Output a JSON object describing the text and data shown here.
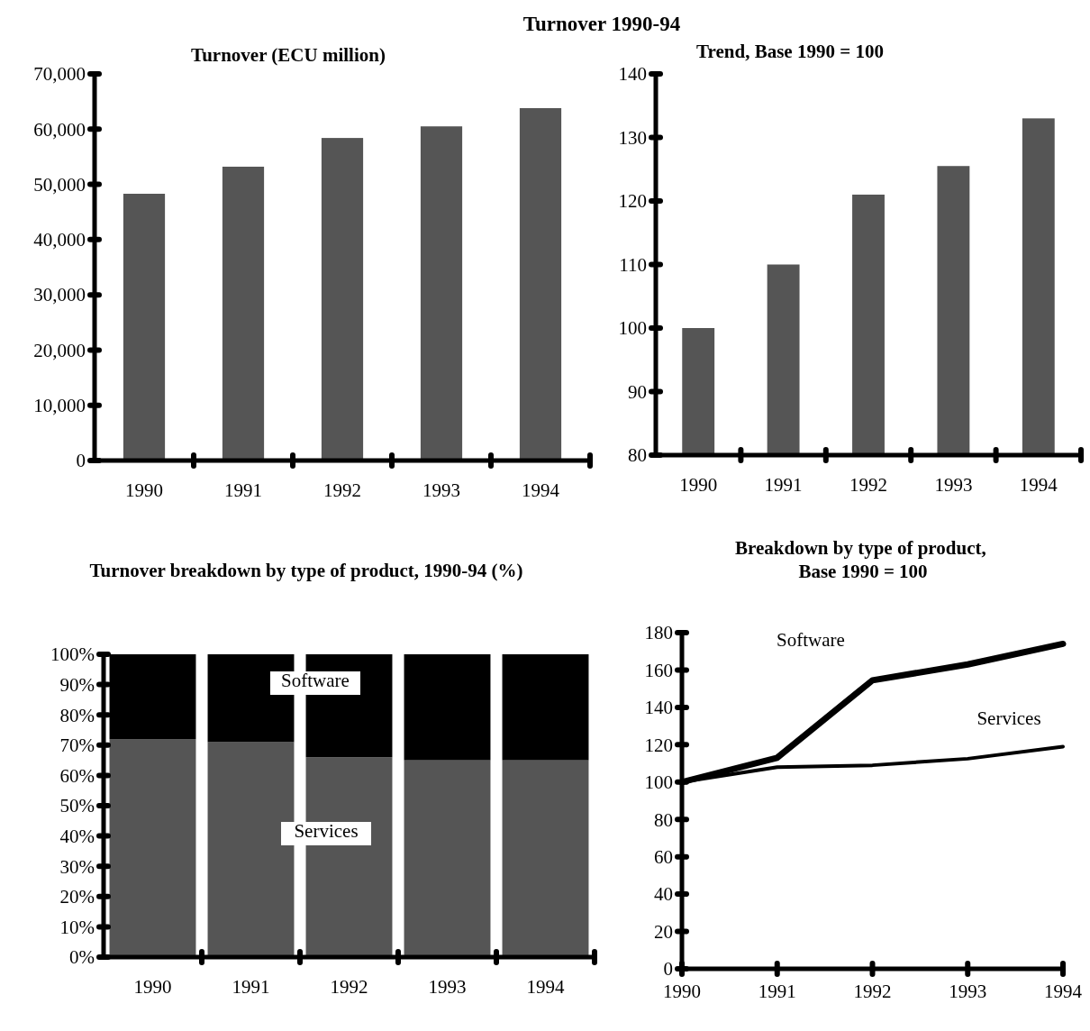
{
  "chart_data": [
    {
      "type": "other",
      "title": "Turnover 1990-94"
    },
    {
      "type": "bar",
      "title": "Turnover (ECU million)",
      "categories": [
        "1990",
        "1991",
        "1992",
        "1993",
        "1994"
      ],
      "values": [
        48300,
        53200,
        58400,
        60500,
        63800
      ],
      "color": "#555555",
      "ylim": [
        0,
        70000
      ],
      "yticks": [
        {
          "value": 0,
          "label": "0"
        },
        {
          "value": 10000,
          "label": "10,000"
        },
        {
          "value": 20000,
          "label": "20,000"
        },
        {
          "value": 30000,
          "label": "30,000"
        },
        {
          "value": 40000,
          "label": "40,000"
        },
        {
          "value": 50000,
          "label": "50,000"
        },
        {
          "value": 60000,
          "label": "60,000"
        },
        {
          "value": 70000,
          "label": "70,000"
        }
      ]
    },
    {
      "type": "bar",
      "title": "Trend, Base 1990 = 100",
      "categories": [
        "1990",
        "1991",
        "1992",
        "1993",
        "1994"
      ],
      "values": [
        100,
        110,
        121,
        125.5,
        133
      ],
      "color": "#555555",
      "ylim": [
        80,
        140
      ],
      "yticks": [
        80,
        90,
        100,
        110,
        120,
        130,
        140
      ]
    },
    {
      "type": "bar",
      "title": "Turnover breakdown by type of product, 1990-94 (%)",
      "categories": [
        "1990",
        "1991",
        "1992",
        "1993",
        "1994"
      ],
      "stacked": true,
      "series": [
        {
          "name": "Services",
          "color": "#555555",
          "values": [
            72,
            71,
            66,
            65,
            65
          ]
        },
        {
          "name": "Software",
          "color": "#000000",
          "values": [
            28,
            29,
            34,
            35,
            35
          ]
        }
      ],
      "ylim": [
        0,
        100
      ],
      "yticks": [
        {
          "value": 0,
          "label": "0%"
        },
        {
          "value": 10,
          "label": "10%"
        },
        {
          "value": 20,
          "label": "20%"
        },
        {
          "value": 30,
          "label": "30%"
        },
        {
          "value": 40,
          "label": "40%"
        },
        {
          "value": 50,
          "label": "50%"
        },
        {
          "value": 60,
          "label": "60%"
        },
        {
          "value": 70,
          "label": "70%"
        },
        {
          "value": 80,
          "label": "80%"
        },
        {
          "value": 90,
          "label": "90%"
        },
        {
          "value": 100,
          "label": "100%"
        }
      ]
    },
    {
      "type": "line",
      "title": "Breakdown by type of product,  Base 1990 = 100",
      "x": [
        1990,
        1991,
        1992,
        1993,
        1994
      ],
      "series": [
        {
          "name": "Software",
          "color": "#000000",
          "values": [
            100,
            113,
            154.5,
            163,
            174
          ]
        },
        {
          "name": "Services",
          "color": "#000000",
          "values": [
            100,
            108,
            109,
            112.5,
            119
          ]
        }
      ],
      "xlim": [
        1990,
        1994
      ],
      "xticks": [
        1990,
        1991,
        1992,
        1993,
        1994
      ],
      "ylim": [
        0,
        180
      ],
      "yticks": [
        0,
        20,
        40,
        60,
        80,
        100,
        120,
        140,
        160,
        180
      ],
      "marker": "none",
      "line_style": "solid"
    }
  ]
}
